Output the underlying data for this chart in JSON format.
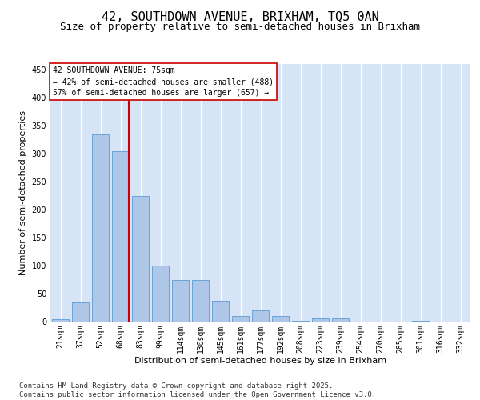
{
  "title_line1": "42, SOUTHDOWN AVENUE, BRIXHAM, TQ5 0AN",
  "title_line2": "Size of property relative to semi-detached houses in Brixham",
  "xlabel": "Distribution of semi-detached houses by size in Brixham",
  "ylabel": "Number of semi-detached properties",
  "categories": [
    "21sqm",
    "37sqm",
    "52sqm",
    "68sqm",
    "83sqm",
    "99sqm",
    "114sqm",
    "130sqm",
    "145sqm",
    "161sqm",
    "177sqm",
    "192sqm",
    "208sqm",
    "223sqm",
    "239sqm",
    "254sqm",
    "270sqm",
    "285sqm",
    "301sqm",
    "316sqm",
    "332sqm"
  ],
  "values": [
    5,
    35,
    335,
    305,
    225,
    101,
    75,
    75,
    38,
    11,
    20,
    11,
    2,
    7,
    7,
    0,
    0,
    0,
    2,
    0,
    0
  ],
  "bar_color": "#aec6e8",
  "bar_edge_color": "#5b9bd5",
  "vline_position": 3.425,
  "vline_color": "#cc0000",
  "annotation_title": "42 SOUTHDOWN AVENUE: 75sqm",
  "annotation_line1": "← 42% of semi-detached houses are smaller (488)",
  "annotation_line2": "57% of semi-detached houses are larger (657) →",
  "annotation_box_facecolor": "#ffffff",
  "annotation_box_edgecolor": "#cc0000",
  "footer": "Contains HM Land Registry data © Crown copyright and database right 2025.\nContains public sector information licensed under the Open Government Licence v3.0.",
  "ylim": [
    0,
    460
  ],
  "yticks": [
    0,
    50,
    100,
    150,
    200,
    250,
    300,
    350,
    400,
    450
  ],
  "bg_color": "#d6e4f5",
  "fig_bg": "#ffffff",
  "title_fontsize": 11,
  "subtitle_fontsize": 9,
  "axis_label_fontsize": 8,
  "tick_fontsize": 7,
  "annotation_fontsize": 7,
  "footer_fontsize": 6.5
}
